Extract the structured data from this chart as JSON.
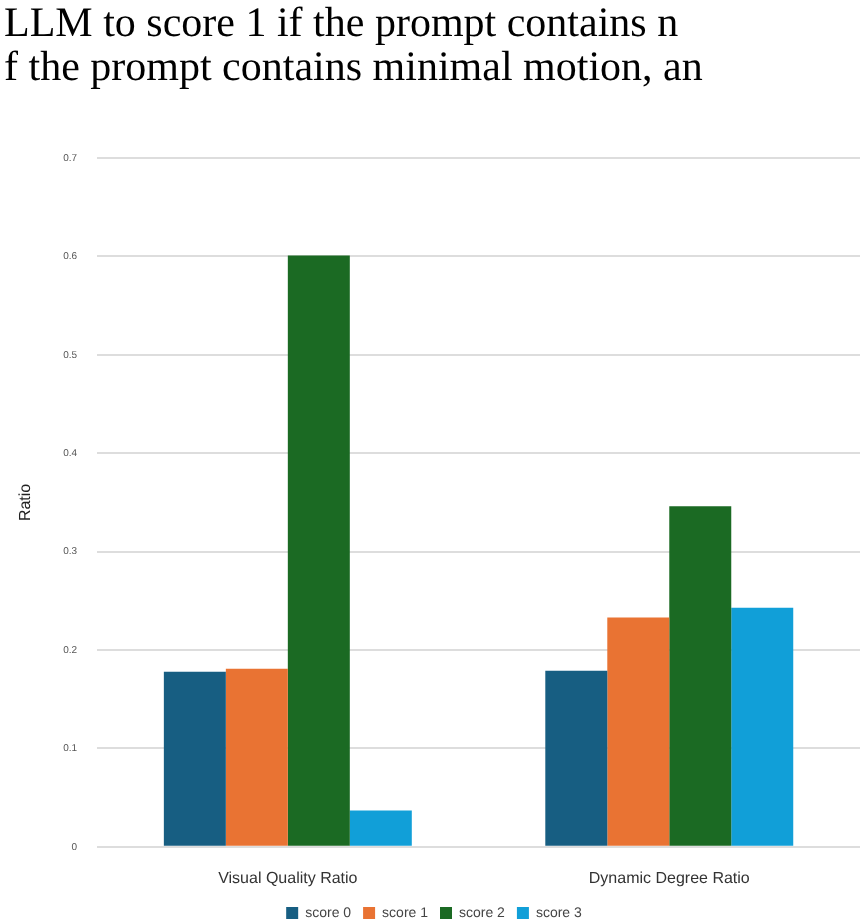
{
  "chart_data": {
    "type": "bar",
    "ylabel": "Ratio",
    "annotations": [
      "LLM to score 1 if the prompt contains n",
      "f the prompt contains minimal motion, an"
    ],
    "categories": [
      "Visual Quality Ratio",
      "Dynamic Degree Ratio"
    ],
    "series": [
      {
        "name": "score 0",
        "color": "#175e82",
        "values": [
          0.178,
          0.179
        ]
      },
      {
        "name": "score 1",
        "color": "#e97333",
        "values": [
          0.181,
          0.233
        ]
      },
      {
        "name": "score 2",
        "color": "#1b6a23",
        "values": [
          0.601,
          0.346
        ]
      },
      {
        "name": "score 3",
        "color": "#119fd8",
        "values": [
          0.037,
          0.243
        ]
      }
    ],
    "ylim": [
      0,
      0.7
    ],
    "yticks": [
      0,
      0.1,
      0.2,
      0.3,
      0.4,
      0.5,
      0.6,
      0.7
    ],
    "grid": "y",
    "legend": "bottom"
  }
}
